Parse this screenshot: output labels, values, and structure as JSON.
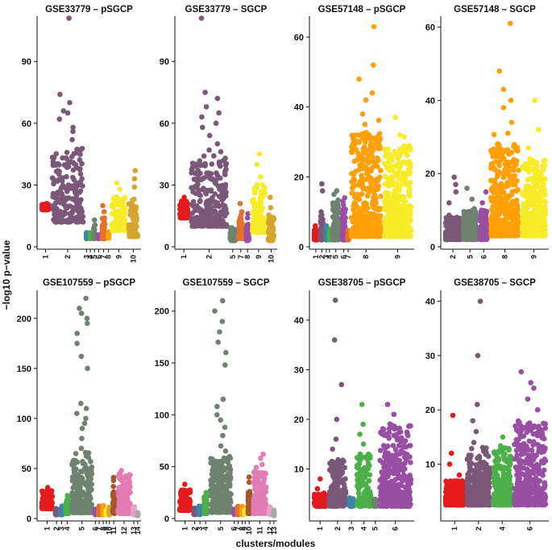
{
  "figure": {
    "ylabel": "−log10 p−value",
    "xlabel": "clusters/modules"
  },
  "colors": {
    "c1": "#e41a1c",
    "c2": "#7b5779",
    "c3": "#3a85a8",
    "c4": "#4daf4a",
    "c5": "#6e8270",
    "c6": "#984ea3",
    "c7": "#e2722d",
    "c8": "#ffa008",
    "c9": "#f7ec27",
    "c10": "#d3a72e",
    "c11": "#a65628",
    "c12": "#e37bb4",
    "c13": "#e6a2c8",
    "c14": "#a8a8a8"
  },
  "chart_data": [
    {
      "type": "scatter",
      "title": "GSE33779 – pSGCP",
      "ylim": [
        0,
        112
      ],
      "yticks": [
        0,
        30,
        60,
        90
      ],
      "categories": [
        "1",
        "2",
        "3",
        "4",
        "5",
        "6",
        "7",
        "8",
        "9",
        "10"
      ],
      "color_keys": [
        "c1",
        "c2",
        "c3",
        "c4",
        "c5",
        "c6",
        "c7",
        "c8",
        "c9",
        "c10"
      ],
      "groups": [
        {
          "n": 70,
          "base": 18,
          "top": 21,
          "extra": []
        },
        {
          "n": 220,
          "base": 12,
          "top": 48,
          "extra": [
            52,
            56,
            58,
            62,
            65,
            66,
            70,
            74,
            111
          ]
        },
        {
          "n": 25,
          "base": 4,
          "top": 7,
          "extra": []
        },
        {
          "n": 25,
          "base": 4,
          "top": 7,
          "extra": []
        },
        {
          "n": 30,
          "base": 4,
          "top": 11,
          "extra": [
            13
          ]
        },
        {
          "n": 25,
          "base": 4,
          "top": 6,
          "extra": []
        },
        {
          "n": 40,
          "base": 4,
          "top": 14,
          "extra": [
            17,
            20
          ]
        },
        {
          "n": 25,
          "base": 4,
          "top": 8,
          "extra": []
        },
        {
          "n": 110,
          "base": 8,
          "top": 25,
          "extra": [
            28,
            31
          ]
        },
        {
          "n": 80,
          "base": 5,
          "top": 24,
          "extra": [
            29,
            33,
            37
          ]
        }
      ]
    },
    {
      "type": "scatter",
      "title": "GSE33779 – SGCP",
      "ylim": [
        0,
        112
      ],
      "yticks": [
        0,
        30,
        60,
        90
      ],
      "categories": [
        "1",
        "2",
        "5",
        "7",
        "8",
        "9",
        "10"
      ],
      "color_keys": [
        "c1",
        "c2",
        "c5",
        "c7",
        "c6",
        "c9",
        "c10"
      ],
      "groups": [
        {
          "n": 80,
          "base": 14,
          "top": 22,
          "extra": [
            24
          ]
        },
        {
          "n": 260,
          "base": 10,
          "top": 42,
          "extra": [
            47,
            50,
            54,
            58,
            60,
            63,
            65,
            68,
            72,
            75,
            111
          ]
        },
        {
          "n": 60,
          "base": 3,
          "top": 10,
          "extra": []
        },
        {
          "n": 50,
          "base": 4,
          "top": 14,
          "extra": [
            17,
            21
          ]
        },
        {
          "n": 40,
          "base": 3,
          "top": 11,
          "extra": [
            14,
            16
          ]
        },
        {
          "n": 110,
          "base": 7,
          "top": 30,
          "extra": [
            34,
            40,
            45
          ]
        },
        {
          "n": 60,
          "base": 3,
          "top": 15,
          "extra": [
            19,
            24
          ]
        }
      ]
    },
    {
      "type": "scatter",
      "title": "GSE57148 – pSGCP",
      "ylim": [
        0,
        66
      ],
      "yticks": [
        0,
        20,
        40,
        60
      ],
      "categories": [
        "1",
        "2",
        "3",
        "4",
        "5",
        "6",
        "7",
        "8",
        "9"
      ],
      "color_keys": [
        "c1",
        "c2",
        "c3",
        "c4",
        "c5",
        "c6",
        "c7",
        "c8",
        "c9"
      ],
      "groups": [
        {
          "n": 80,
          "base": 2,
          "top": 5,
          "extra": [
            6
          ]
        },
        {
          "n": 70,
          "base": 2,
          "top": 9,
          "extra": [
            10,
            16,
            18
          ]
        },
        {
          "n": 40,
          "base": 2,
          "top": 5,
          "extra": [
            6
          ]
        },
        {
          "n": 40,
          "base": 2,
          "top": 5,
          "extra": []
        },
        {
          "n": 120,
          "base": 2,
          "top": 13,
          "extra": [
            15,
            16
          ]
        },
        {
          "n": 80,
          "base": 2,
          "top": 11,
          "extra": [
            13,
            14
          ]
        },
        {
          "n": 30,
          "base": 2,
          "top": 5,
          "extra": []
        },
        {
          "n": 420,
          "base": 3,
          "top": 33,
          "extra": [
            35,
            38,
            42,
            44,
            48,
            52,
            63
          ]
        },
        {
          "n": 380,
          "base": 3,
          "top": 29,
          "extra": [
            32,
            37
          ]
        }
      ]
    },
    {
      "type": "scatter",
      "title": "GSE57148 – SGCP",
      "ylim": [
        0,
        63
      ],
      "yticks": [
        0,
        20,
        40,
        60
      ],
      "categories": [
        "2",
        "5",
        "6",
        "8",
        "9"
      ],
      "color_keys": [
        "c2",
        "c5",
        "c6",
        "c8",
        "c9"
      ],
      "groups": [
        {
          "n": 240,
          "base": 2,
          "top": 8,
          "extra": [
            12,
            15,
            19,
            17
          ]
        },
        {
          "n": 220,
          "base": 2,
          "top": 10,
          "extra": [
            13,
            16
          ]
        },
        {
          "n": 150,
          "base": 2,
          "top": 10,
          "extra": [
            12,
            15
          ]
        },
        {
          "n": 420,
          "base": 3,
          "top": 28,
          "extra": [
            31,
            34,
            38,
            40,
            43,
            48,
            61
          ]
        },
        {
          "n": 360,
          "base": 3,
          "top": 24,
          "extra": [
            27,
            32,
            40
          ]
        }
      ]
    },
    {
      "type": "scatter",
      "title": "GSE107559 – pSGCP",
      "ylim": [
        0,
        228
      ],
      "yticks": [
        0,
        50,
        100,
        150,
        200
      ],
      "categories": [
        "1",
        "2",
        "3",
        "4",
        "5",
        "6",
        "7",
        "8",
        "9",
        "10",
        "11",
        "12",
        "13",
        "14"
      ],
      "color_keys": [
        "c1",
        "c2",
        "c3",
        "c4",
        "c5",
        "c6",
        "c7",
        "c8",
        "c9",
        "c10",
        "c11",
        "c12",
        "c13",
        "c14"
      ],
      "groups": [
        {
          "n": 160,
          "base": 10,
          "top": 28,
          "extra": [
            31
          ]
        },
        {
          "n": 60,
          "base": 4,
          "top": 10,
          "extra": []
        },
        {
          "n": 60,
          "base": 4,
          "top": 12,
          "extra": []
        },
        {
          "n": 70,
          "base": 5,
          "top": 20,
          "extra": [
            23
          ]
        },
        {
          "n": 260,
          "base": 6,
          "top": 60,
          "extra": [
            70,
            80,
            90,
            95,
            100,
            105,
            110,
            115,
            150,
            162,
            175,
            185,
            195,
            200,
            205,
            210,
            220
          ]
        },
        {
          "n": 40,
          "base": 4,
          "top": 10,
          "extra": []
        },
        {
          "n": 50,
          "base": 4,
          "top": 12,
          "extra": []
        },
        {
          "n": 45,
          "base": 4,
          "top": 13,
          "extra": []
        },
        {
          "n": 30,
          "base": 4,
          "top": 8,
          "extra": []
        },
        {
          "n": 40,
          "base": 4,
          "top": 12,
          "extra": []
        },
        {
          "n": 60,
          "base": 5,
          "top": 28,
          "extra": [
            32,
            38,
            41
          ]
        },
        {
          "n": 180,
          "base": 5,
          "top": 45,
          "extra": [
            48
          ]
        },
        {
          "n": 50,
          "base": 4,
          "top": 12,
          "extra": []
        },
        {
          "n": 40,
          "base": 3,
          "top": 6,
          "extra": []
        }
      ]
    },
    {
      "type": "scatter",
      "title": "GSE107559 – SGCP",
      "ylim": [
        0,
        220
      ],
      "yticks": [
        0,
        50,
        100,
        150,
        200
      ],
      "categories": [
        "1",
        "2",
        "3",
        "4",
        "5",
        "6",
        "7",
        "8",
        "9",
        "10",
        "11",
        "12",
        "13"
      ],
      "color_keys": [
        "c1",
        "c2",
        "c3",
        "c4",
        "c5",
        "c6",
        "c7",
        "c8",
        "c9",
        "c11",
        "c12",
        "c13",
        "c14"
      ],
      "groups": [
        {
          "n": 160,
          "base": 8,
          "top": 28,
          "extra": [
            33
          ]
        },
        {
          "n": 60,
          "base": 4,
          "top": 10,
          "extra": []
        },
        {
          "n": 60,
          "base": 4,
          "top": 12,
          "extra": []
        },
        {
          "n": 70,
          "base": 5,
          "top": 22,
          "extra": [
            25
          ]
        },
        {
          "n": 260,
          "base": 6,
          "top": 60,
          "extra": [
            70,
            80,
            88,
            95,
            100,
            108,
            115,
            148,
            160,
            170,
            180,
            190,
            200,
            210
          ]
        },
        {
          "n": 40,
          "base": 4,
          "top": 9,
          "extra": []
        },
        {
          "n": 50,
          "base": 4,
          "top": 12,
          "extra": []
        },
        {
          "n": 40,
          "base": 4,
          "top": 12,
          "extra": []
        },
        {
          "n": 30,
          "base": 4,
          "top": 8,
          "extra": []
        },
        {
          "n": 60,
          "base": 5,
          "top": 26,
          "extra": [
            35,
            40
          ]
        },
        {
          "n": 180,
          "base": 5,
          "top": 45,
          "extra": [
            52,
            58,
            62
          ]
        },
        {
          "n": 50,
          "base": 4,
          "top": 12,
          "extra": []
        },
        {
          "n": 40,
          "base": 3,
          "top": 8,
          "extra": []
        }
      ]
    },
    {
      "type": "scatter",
      "title": "GSE38705 – pSGCP",
      "ylim": [
        0,
        46
      ],
      "yticks": [
        10,
        20,
        30,
        40
      ],
      "categories": [
        "1",
        "2",
        "3",
        "4",
        "5",
        "6"
      ],
      "color_keys": [
        "c1",
        "c2",
        "c3",
        "c4",
        "c5",
        "c6"
      ],
      "groups": [
        {
          "n": 150,
          "base": 2.5,
          "top": 5,
          "extra": [
            6,
            8
          ]
        },
        {
          "n": 200,
          "base": 2.5,
          "top": 12,
          "extra": [
            14,
            16,
            20,
            27,
            36,
            44
          ]
        },
        {
          "n": 80,
          "base": 2.5,
          "top": 4,
          "extra": []
        },
        {
          "n": 170,
          "base": 2.5,
          "top": 13,
          "extra": [
            15,
            17,
            19,
            23
          ]
        },
        {
          "n": 60,
          "base": 2.5,
          "top": 4,
          "extra": []
        },
        {
          "n": 350,
          "base": 2.5,
          "top": 19,
          "extra": [
            21,
            23
          ]
        }
      ]
    },
    {
      "type": "scatter",
      "title": "GSE38705 – SGCP",
      "ylim": [
        0,
        42
      ],
      "yticks": [
        10,
        20,
        30,
        40
      ],
      "categories": [
        "1",
        "2",
        "4",
        "6"
      ],
      "color_keys": [
        "c1",
        "c2",
        "c4",
        "c6"
      ],
      "groups": [
        {
          "n": 260,
          "base": 2.5,
          "top": 7,
          "extra": [
            8,
            10,
            12,
            19
          ]
        },
        {
          "n": 320,
          "base": 2.5,
          "top": 12,
          "extra": [
            14,
            16,
            18,
            21,
            30,
            40
          ]
        },
        {
          "n": 260,
          "base": 2.5,
          "top": 13,
          "extra": [
            15
          ]
        },
        {
          "n": 420,
          "base": 2.5,
          "top": 18,
          "extra": [
            20,
            22,
            24,
            25,
            27
          ]
        }
      ]
    }
  ]
}
